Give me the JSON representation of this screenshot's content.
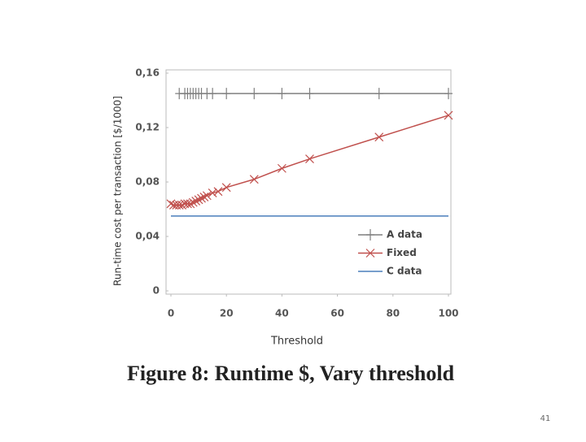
{
  "chart_data": {
    "type": "line",
    "title": "Figure 8:  Runtime $, Vary threshold",
    "x_label": "Threshold",
    "y_label": "Run-time cost per transaction [$/1000]",
    "xlim": [
      0,
      100
    ],
    "xticks": [
      0,
      20,
      40,
      60,
      80,
      100
    ],
    "ylim": [
      0,
      0.16
    ],
    "yticks": [
      0,
      {
        "value": 0.04,
        "label": "0,04"
      },
      {
        "value": 0.08,
        "label": "0,08"
      },
      {
        "value": 0.12,
        "label": "0,12"
      },
      {
        "value": 0.16,
        "label": "0,16"
      }
    ],
    "legend": "lower right",
    "series": [
      {
        "name": "A data",
        "color": "#7f7f7f",
        "marker": "+",
        "x": [
          3,
          5,
          6,
          7,
          8,
          9,
          10,
          11,
          13,
          15,
          20,
          30,
          40,
          50,
          75,
          100
        ],
        "values": [
          0.145,
          0.145,
          0.145,
          0.145,
          0.145,
          0.145,
          0.145,
          0.145,
          0.145,
          0.145,
          0.145,
          0.145,
          0.145,
          0.145,
          0.145,
          0.145
        ]
      },
      {
        "name": "Fixed",
        "color": "#c0504d",
        "marker": "x",
        "x": [
          0,
          1,
          2,
          3,
          4,
          5,
          6,
          7,
          8,
          9,
          10,
          11,
          12,
          13,
          15,
          17,
          20,
          30,
          40,
          50,
          75,
          100
        ],
        "values": [
          0.064,
          0.063,
          0.063,
          0.063,
          0.063,
          0.064,
          0.064,
          0.064,
          0.065,
          0.066,
          0.067,
          0.068,
          0.069,
          0.07,
          0.072,
          0.073,
          0.076,
          0.082,
          0.09,
          0.097,
          0.113,
          0.129
        ]
      },
      {
        "name": "C data",
        "color": "#4a7ebb",
        "marker": "none",
        "x": [
          0,
          100
        ],
        "values": [
          0.055,
          0.055
        ]
      }
    ]
  },
  "page_number": "41"
}
